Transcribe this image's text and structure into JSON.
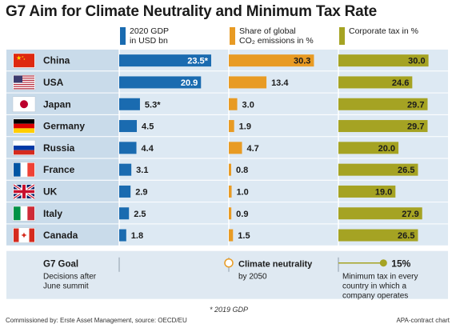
{
  "title": "G7 Aim for Climate Neutrality and Minimum Tax Rate",
  "colors": {
    "gdp": "#1a6bb0",
    "co2": "#e89b24",
    "tax": "#a5a323",
    "row_light": "#dde9f3",
    "row_dark": "#c9dbea",
    "goal_bg": "#dfe9f2"
  },
  "legend": {
    "gdp": "2020 GDP\nin USD bn",
    "co2": "Share of global\nCO₂ emissions in %",
    "tax": "Corporate tax in %"
  },
  "chart_data": {
    "type": "bar",
    "categories": [
      "China",
      "USA",
      "Japan",
      "Germany",
      "Russia",
      "France",
      "UK",
      "Italy",
      "Canada"
    ],
    "flags": [
      "china-flag-icon",
      "usa-flag-icon",
      "japan-flag-icon",
      "germany-flag-icon",
      "russia-flag-icon",
      "france-flag-icon",
      "uk-flag-icon",
      "italy-flag-icon",
      "canada-flag-icon"
    ],
    "series": [
      {
        "name": "2020 GDP in USD bn",
        "values": [
          23.5,
          20.9,
          5.3,
          4.5,
          4.4,
          3.1,
          2.9,
          2.5,
          1.8
        ],
        "labels": [
          "23.5*",
          "20.9",
          "5.3*",
          "4.5",
          "4.4",
          "3.1",
          "2.9",
          "2.5",
          "1.8"
        ]
      },
      {
        "name": "Share of global CO₂ emissions in %",
        "values": [
          30.3,
          13.4,
          3.0,
          1.9,
          4.7,
          0.8,
          1.0,
          0.9,
          1.5
        ],
        "labels": [
          "30.3",
          "13.4",
          "3.0",
          "1.9",
          "4.7",
          "0.8",
          "1.0",
          "0.9",
          "1.5"
        ]
      },
      {
        "name": "Corporate tax in %",
        "values": [
          30.0,
          24.6,
          29.7,
          29.7,
          20.0,
          26.5,
          19.0,
          27.9,
          26.5
        ],
        "labels": [
          "30.0",
          "24.6",
          "29.7",
          "29.7",
          "20.0",
          "26.5",
          "19.0",
          "27.9",
          "26.5"
        ]
      }
    ]
  },
  "goal": {
    "title": "G7 Goal",
    "subtitle": "Decisions after\nJune summit",
    "climate_title": "Climate neutrality",
    "climate_sub": "by 2050",
    "tax_value": "15%",
    "tax_desc": "Minimum tax in every\ncountry in which a\ncompany operates"
  },
  "footnote": "* 2019 GDP",
  "source": "Commissioned by: Erste Asset Management, source: OECD/EU",
  "credit": "APA-contract chart"
}
